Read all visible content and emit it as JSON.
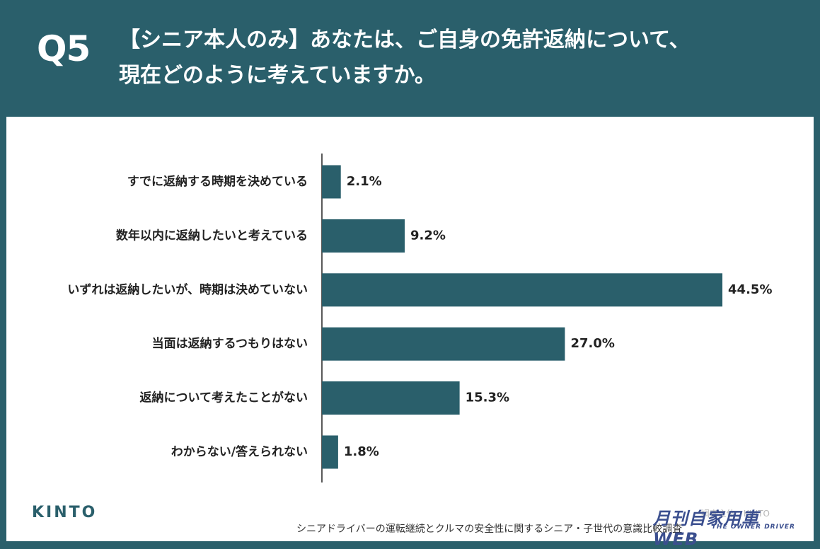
{
  "header": {
    "question_number": "Q5",
    "title_line1": "【シニア本人のみ】あなたは、ご自身の免許返納について、",
    "title_line2": "現在どのように考えていますか。"
  },
  "chart_data": {
    "type": "bar",
    "orientation": "horizontal",
    "categories": [
      "すでに返納する時期を決めている",
      "数年以内に返納したいと考えている",
      "いずれは返納したいが、時期は決めていない",
      "当面は返納するつもりはない",
      "返納について考えたことがない",
      "わからない/答えられない"
    ],
    "values": [
      2.1,
      9.2,
      44.5,
      27.0,
      15.3,
      1.8
    ],
    "value_labels": [
      "2.1%",
      "9.2%",
      "44.5%",
      "27.0%",
      "15.3%",
      "1.8%"
    ],
    "xlim": [
      0,
      50
    ],
    "grid": false,
    "colors": {
      "bar": "#2a5f6b",
      "background": "#2a5f6b",
      "panel": "#ffffff"
    }
  },
  "footer": {
    "logo": "KINTO",
    "source": "シニアドライバーの運転継続とクルマの安全性に関するシニア・子世代の意識比較調査",
    "credit": "調査主体：KINTO",
    "brand_main": "月刊自家用車WEB",
    "brand_sub": "THE OWNER DRIVER"
  }
}
